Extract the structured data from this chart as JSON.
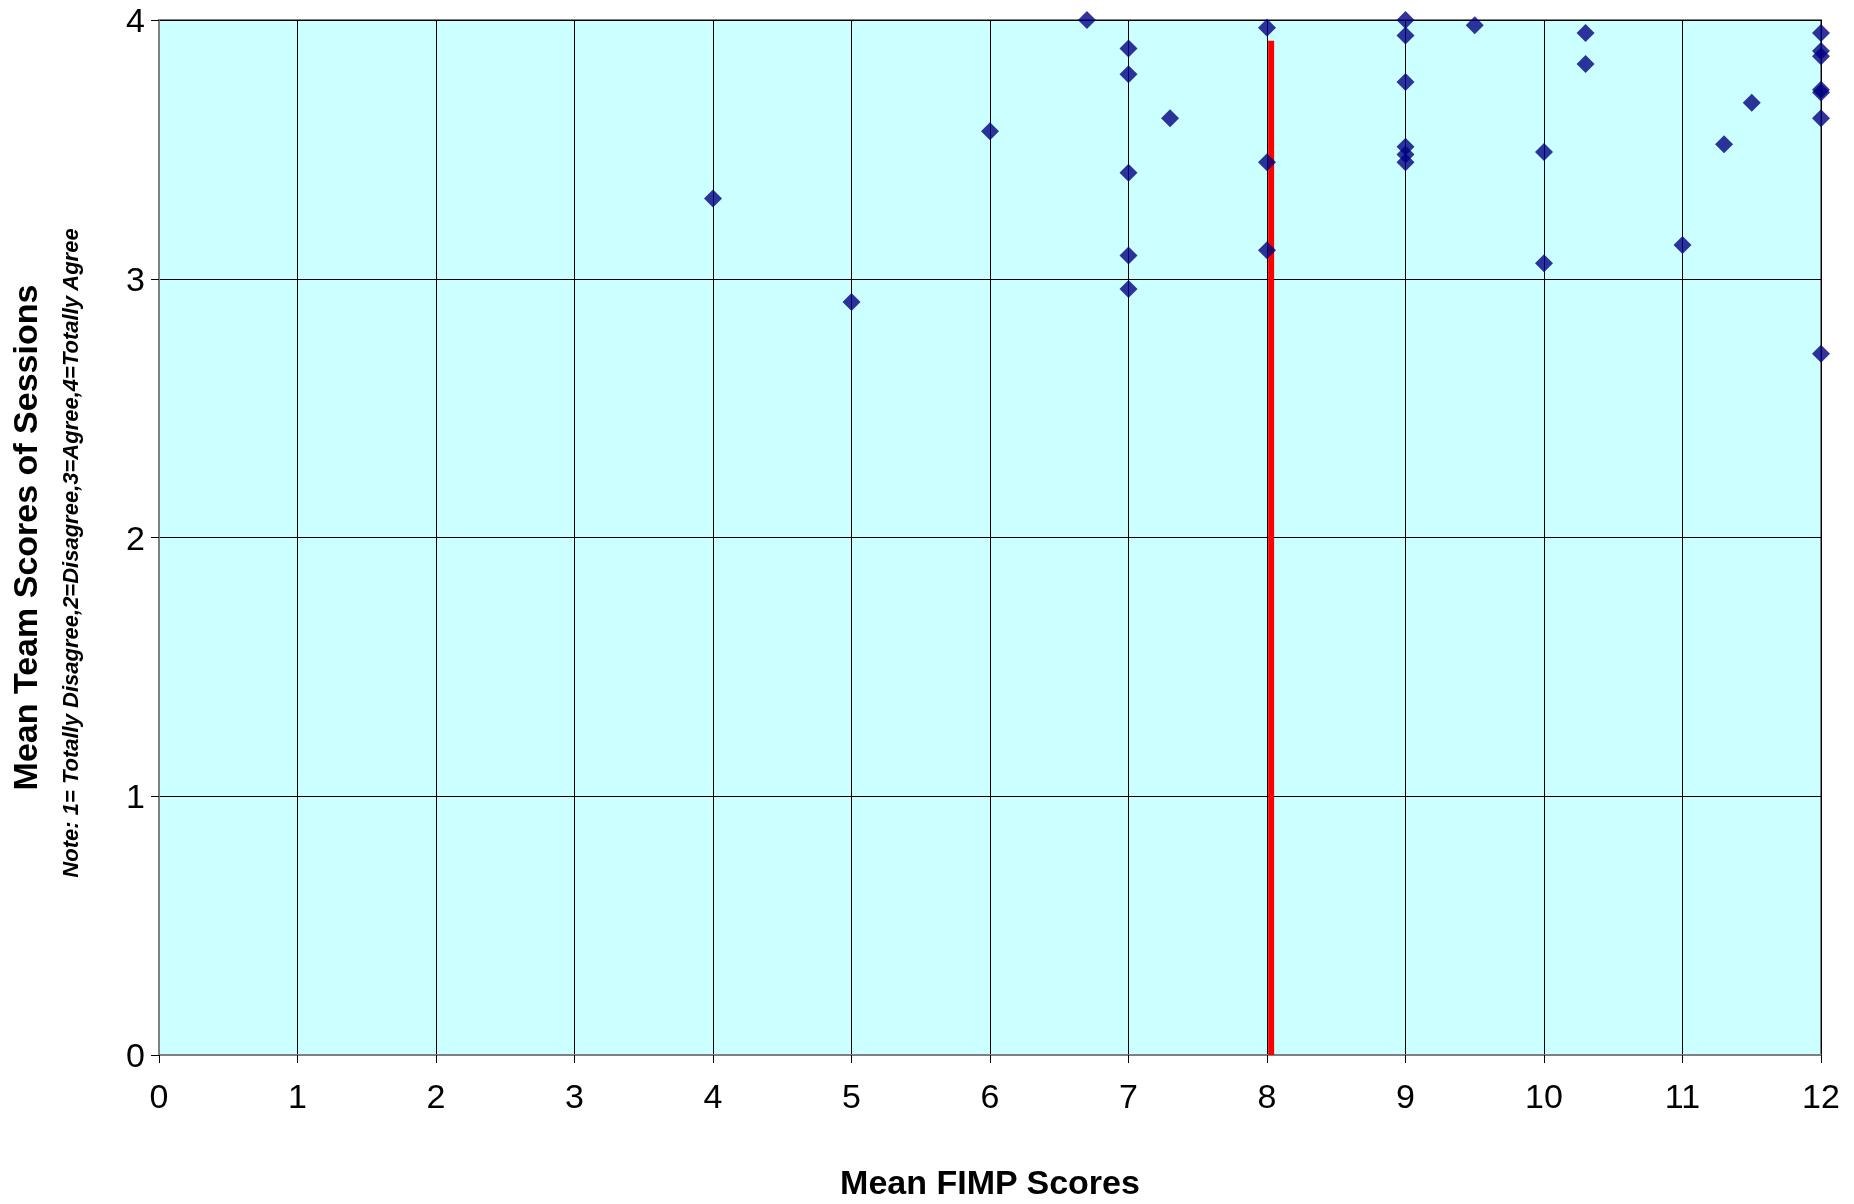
{
  "chart_data": {
    "type": "scatter",
    "xlabel": "Mean FIMP Scores",
    "ylabel": "Mean Team Scores of Sessions",
    "annotations": [
      "Note: 1= Totally Disagree,2=Disagree,3=Agree,4=Totally Agree"
    ],
    "xlim": [
      0,
      12
    ],
    "xticks": [
      0,
      1,
      2,
      3,
      4,
      5,
      6,
      7,
      8,
      9,
      10,
      11,
      12
    ],
    "ylim": [
      0,
      4
    ],
    "yticks": [
      0,
      1,
      2,
      3,
      4
    ],
    "grid": true,
    "marker": "diamond",
    "series": [
      {
        "color": "#000080",
        "x": [
          4,
          5,
          6,
          6.7,
          7,
          7,
          7,
          7,
          7,
          7.3,
          8,
          8,
          8,
          9,
          9,
          9,
          9,
          9,
          9,
          9.5,
          10,
          10,
          10.3,
          10.3,
          11,
          11.3,
          11.5,
          12,
          12,
          12,
          12,
          12,
          12,
          12
        ],
        "values": [
          3.31,
          2.91,
          3.57,
          4.0,
          3.89,
          3.79,
          3.41,
          3.09,
          2.96,
          3.62,
          3.97,
          3.45,
          3.11,
          4.0,
          3.94,
          3.76,
          3.51,
          3.48,
          3.45,
          3.98,
          3.49,
          3.06,
          3.95,
          3.83,
          3.13,
          3.52,
          3.68,
          3.95,
          3.88,
          3.86,
          3.73,
          3.72,
          3.62,
          2.71
        ]
      },
      {
        "type": "line",
        "color": "#ff0000",
        "marker": "none",
        "line_style": "solid",
        "x": [
          8.03,
          8.03
        ],
        "values": [
          0,
          3.92
        ]
      }
    ]
  }
}
